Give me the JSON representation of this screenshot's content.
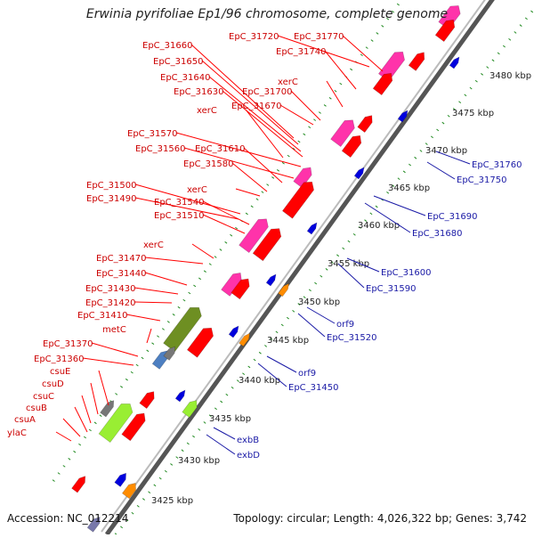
{
  "title": "Erwinia pyrifoliae Ep1/96 chromosome, complete genome",
  "footer": {
    "accession": "Accession: NC_012214",
    "topology": "Topology: circular; Length: 4,026,322 bp; Genes: 3,742"
  },
  "colors": {
    "red_gene": "#ff0000",
    "magenta_gene": "#ff33aa",
    "red_label": "#cc0000",
    "blue_label": "#1a1aa6",
    "blue_gene": "#0000dd",
    "orange_gene": "#ff8c00",
    "olive_gene": "#6e8f22",
    "steel_gene": "#4d7fc1",
    "lime_gene": "#99ee33",
    "gray_gene": "#777777",
    "scale_dots": "#228b22"
  },
  "kbp_labels": [
    "3425 kbp",
    "3430 kbp",
    "3435 kbp",
    "3440 kbp",
    "3445 kbp",
    "3450 kbp",
    "3455 kbp",
    "3460 kbp",
    "3465 kbp",
    "3470 kbp",
    "3475 kbp",
    "3480 kbp"
  ],
  "left_labels": [
    "EpC_31660",
    "EpC_31650",
    "EpC_31640",
    "EpC_31630",
    "EpC_31720",
    "EpC_31770",
    "EpC_31740",
    "xerC",
    "EpC_31700",
    "EpC_31670",
    "xerC",
    "EpC_31570",
    "EpC_31560",
    "EpC_31610",
    "EpC_31580",
    "EpC_31500",
    "EpC_31490",
    "xerC",
    "EpC_31540",
    "EpC_31510",
    "xerC",
    "EpC_31470",
    "EpC_31440",
    "EpC_31430",
    "EpC_31420",
    "EpC_31410",
    "metC",
    "EpC_31370",
    "EpC_31360",
    "csuE",
    "csuD",
    "csuC",
    "csuB",
    "csuA",
    "ylaC"
  ],
  "right_labels": [
    "EpC_31760",
    "EpC_31750",
    "EpC_31690",
    "EpC_31680",
    "EpC_31600",
    "EpC_31590",
    "orf9",
    "EpC_31520",
    "orf9",
    "EpC_31450",
    "exbB",
    "exbD"
  ]
}
